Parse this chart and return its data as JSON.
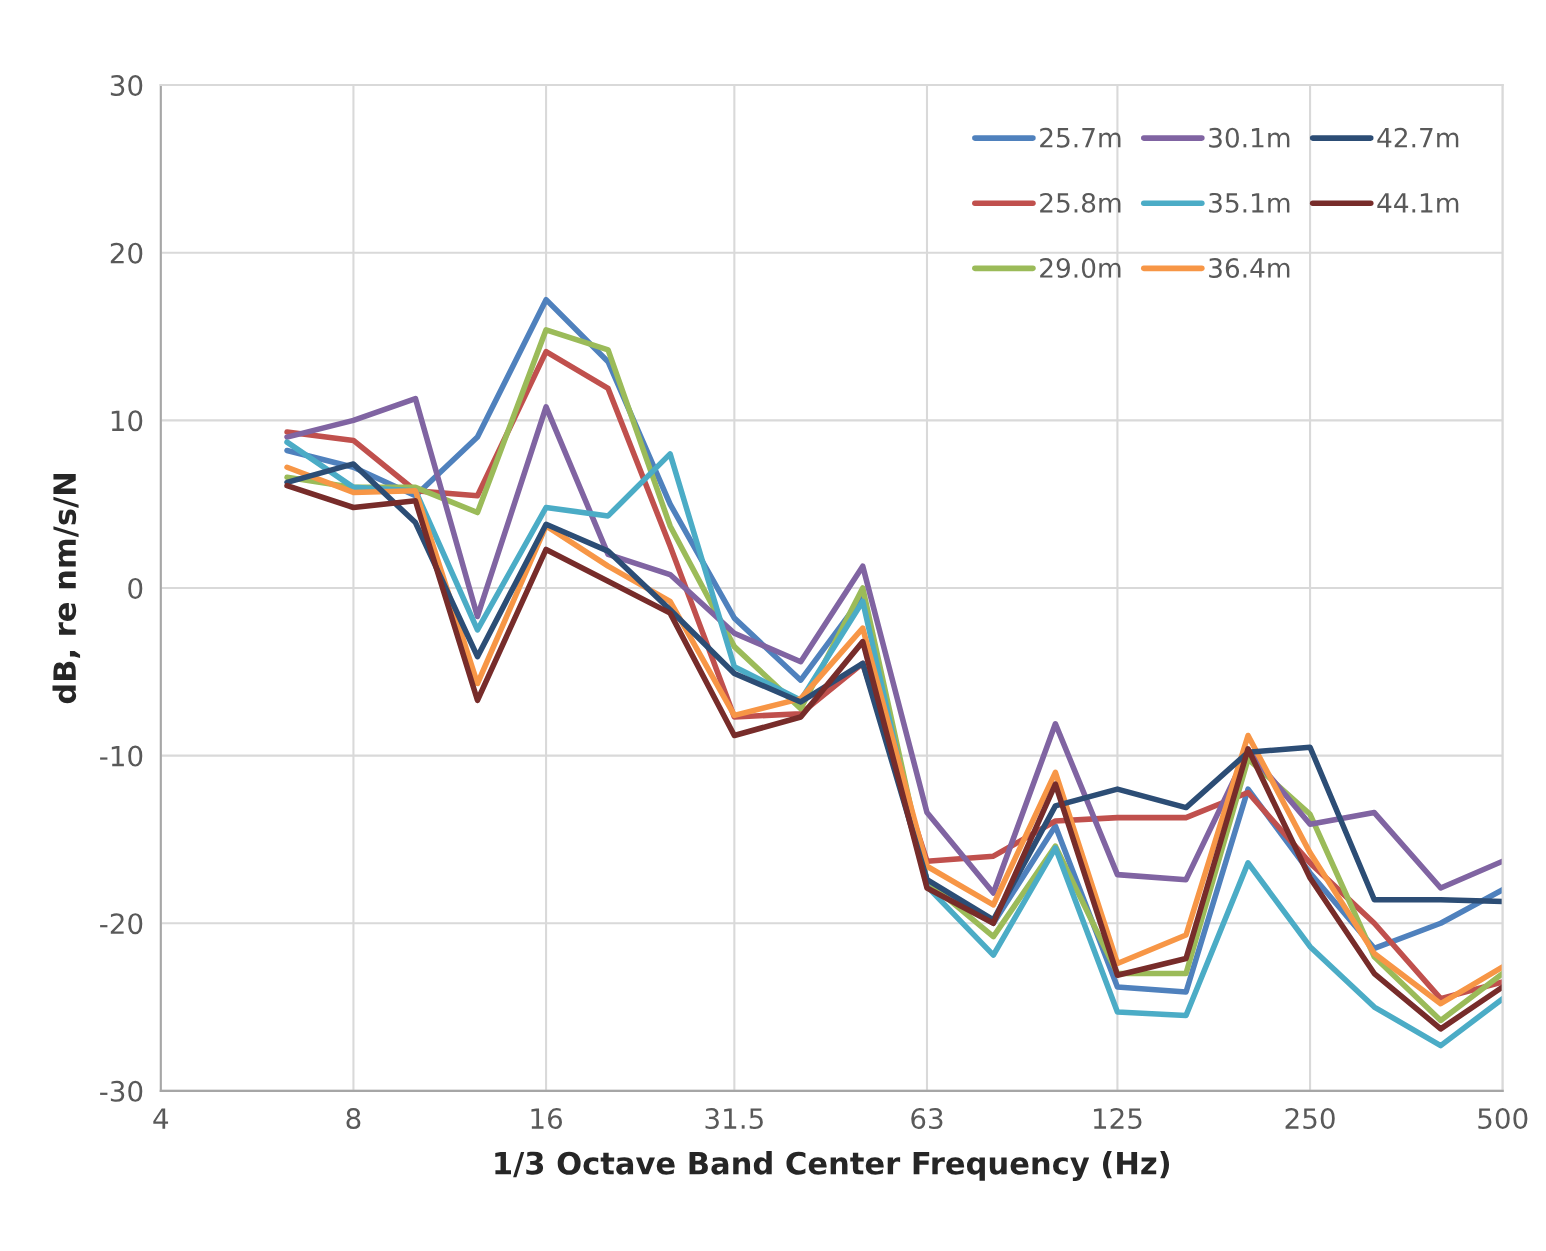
{
  "chart_data": {
    "type": "line",
    "xlabel": "1/3 Octave Band Center Frequency (Hz)",
    "ylabel": "dB, re nm/s/N",
    "log": "x",
    "xlim": [
      4,
      500
    ],
    "xticks": [
      4,
      8,
      16,
      31.5,
      63,
      125,
      250,
      500
    ],
    "ylim": [
      -30,
      30
    ],
    "yticks": [
      -30,
      -20,
      -10,
      0,
      10,
      20,
      30
    ],
    "grid": true,
    "legend": "top right",
    "marker": "none",
    "line_style": "solid",
    "x": [
      6.3,
      8,
      10,
      12.5,
      16,
      20,
      25,
      31.5,
      40,
      50,
      63,
      80,
      100,
      125,
      160,
      200,
      250,
      315,
      400,
      500
    ],
    "series": [
      {
        "name": "25.7m",
        "color": "#4f81bd",
        "values": [
          8.2,
          7.2,
          5.5,
          9,
          17.2,
          13.5,
          5,
          -1.8,
          -5.5,
          -0.5,
          -17.5,
          -20,
          -14.2,
          -23.8,
          -24.1,
          -12,
          -17,
          -21.5,
          -20,
          -18
        ]
      },
      {
        "name": "25.8m",
        "color": "#c0504d",
        "values": [
          9.3,
          8.8,
          5.8,
          5.5,
          14.1,
          11.9,
          2.5,
          -7.7,
          -7.5,
          -4.5,
          -16.3,
          -16,
          -13.9,
          -13.7,
          -13.7,
          -12.2,
          -16.4,
          -20,
          -24.5,
          -23.5
        ]
      },
      {
        "name": "29.0m",
        "color": "#9bbb59",
        "values": [
          6.6,
          6.0,
          6.0,
          4.5,
          15.4,
          14.2,
          3.7,
          -3.5,
          -7.2,
          0,
          -17.5,
          -20.8,
          -15.4,
          -23.0,
          -23.0,
          -10.2,
          -13.5,
          -22,
          -25.8,
          -23
        ]
      },
      {
        "name": "30.1m",
        "color": "#8064a2",
        "values": [
          9.0,
          10.0,
          11.3,
          -1.7,
          10.8,
          2.0,
          0.8,
          -2.7,
          -4.4,
          1.3,
          -13.4,
          -18.2,
          -8.1,
          -17.1,
          -17.4,
          -9.7,
          -14.1,
          -13.4,
          -17.9,
          -16.3
        ]
      },
      {
        "name": "35.1m",
        "color": "#4bacc6",
        "values": [
          8.7,
          6.0,
          5.8,
          -2.5,
          4.8,
          4.3,
          8.0,
          -4.7,
          -6.7,
          -0.8,
          -17.8,
          -21.9,
          -15.5,
          -25.3,
          -25.5,
          -16.4,
          -21.4,
          -25,
          -27.3,
          -24.5
        ]
      },
      {
        "name": "36.4m",
        "color": "#f79646",
        "values": [
          7.2,
          5.7,
          5.8,
          -5.7,
          3.7,
          1.3,
          -0.8,
          -7.6,
          -6.6,
          -2.4,
          -16.6,
          -18.9,
          -11.0,
          -22.4,
          -20.7,
          -8.8,
          -15.8,
          -21.8,
          -24.8,
          -22.6
        ]
      },
      {
        "name": "42.7m",
        "color": "#2c4d75",
        "values": [
          6.3,
          7.4,
          3.9,
          -4.1,
          3.8,
          2.2,
          -1.3,
          -5.1,
          -6.8,
          -4.5,
          -17.4,
          -19.8,
          -13.0,
          -12.0,
          -13.1,
          -9.8,
          -9.5,
          -18.6,
          -18.6,
          -18.7
        ]
      },
      {
        "name": "44.1m",
        "color": "#772c2a",
        "values": [
          6.1,
          4.8,
          5.2,
          -6.7,
          2.3,
          0.4,
          -1.5,
          -8.8,
          -7.7,
          -3.2,
          -17.9,
          -20.0,
          -11.7,
          -23.1,
          -22.1,
          -9.6,
          -17.3,
          -23.0,
          -26.3,
          -23.8
        ]
      }
    ]
  }
}
